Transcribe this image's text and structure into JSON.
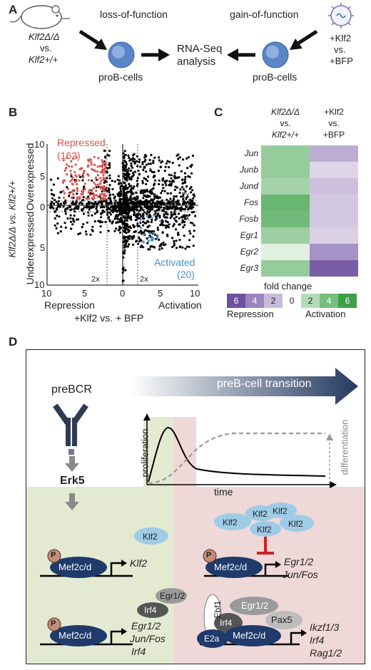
{
  "panelA": {
    "letter": "A",
    "loss_label": "loss-of-function",
    "gain_label": "gain-of-function",
    "left_comp_1": "Klf2Δ/Δ",
    "left_comp_vs": "vs.",
    "left_comp_2": "Klf2+/+",
    "left_cell": "proB-cells",
    "center_1": "RNA-Seq",
    "center_2": "analysis",
    "right_cell": "proB-cells",
    "right_comp_1": "+Klf2",
    "right_comp_vs": "vs.",
    "right_comp_2": "+BFP"
  },
  "panelB": {
    "letter": "B",
    "y_label": "Klf2Δ/Δ vs. Klf2+/+",
    "y_top_label": "Overexpressed",
    "y_bottom_label": "Underexpressed",
    "x_left_label": "Repression",
    "x_right_label": "Activation",
    "x_label": "+Klf2 vs. + BFP",
    "repressed_label": "Repressed",
    "repressed_count": "(162)",
    "activated_label": "Activated",
    "activated_count": "(20)",
    "threshold_label": "2x",
    "x_ticks": [
      "10",
      "5",
      "0",
      "5",
      "10"
    ],
    "y_ticks_top": [
      "10",
      "5",
      "0"
    ],
    "y_ticks_bottom": [
      "5",
      "10"
    ],
    "colors": {
      "repressed": "#d9534f",
      "activated": "#4a90c8",
      "other": "#000000"
    }
  },
  "panelC": {
    "letter": "C",
    "col1_line1": "Klf2Δ/Δ",
    "col1_line2": "vs.",
    "col1_line3": "Klf2+/+",
    "col2_line1": "+Klf2",
    "col2_line2": "vs.",
    "col2_line3": "+BFP",
    "genes": [
      "Jun",
      "Junb",
      "Jund",
      "Fos",
      "Fosb",
      "Egr1",
      "Egr2",
      "Egr3"
    ],
    "values_col1": [
      3,
      3,
      2.5,
      4.5,
      4.2,
      2.8,
      0.5,
      3
    ],
    "values_col2": [
      -2.5,
      -1,
      -1.8,
      -1.5,
      -1.5,
      -1.2,
      -3.5,
      -5.5
    ],
    "legend_title": "fold change",
    "legend_values": [
      "6",
      "4",
      "2",
      "0",
      "2",
      "4",
      "6"
    ],
    "legend_repression": "Repression",
    "legend_activation": "Activation"
  },
  "panelD": {
    "letter": "D",
    "prebcr": "preBCR",
    "erk5": "Erk5",
    "transition": "preB-cell transition",
    "proliferation": "proliferation",
    "differentiation": "differentiation",
    "time": "time",
    "p": "P",
    "mef2": "Mef2c/d",
    "klf2": "Klf2",
    "egr12": "Egr1/2",
    "junfos": "Jun/Fos",
    "irf4": "Irf4",
    "ebf1": "Ebf1",
    "pax5": "Pax5",
    "e2a": "E2a",
    "ikzf": "Ikzf1/3",
    "rag": "Rag1/2"
  }
}
